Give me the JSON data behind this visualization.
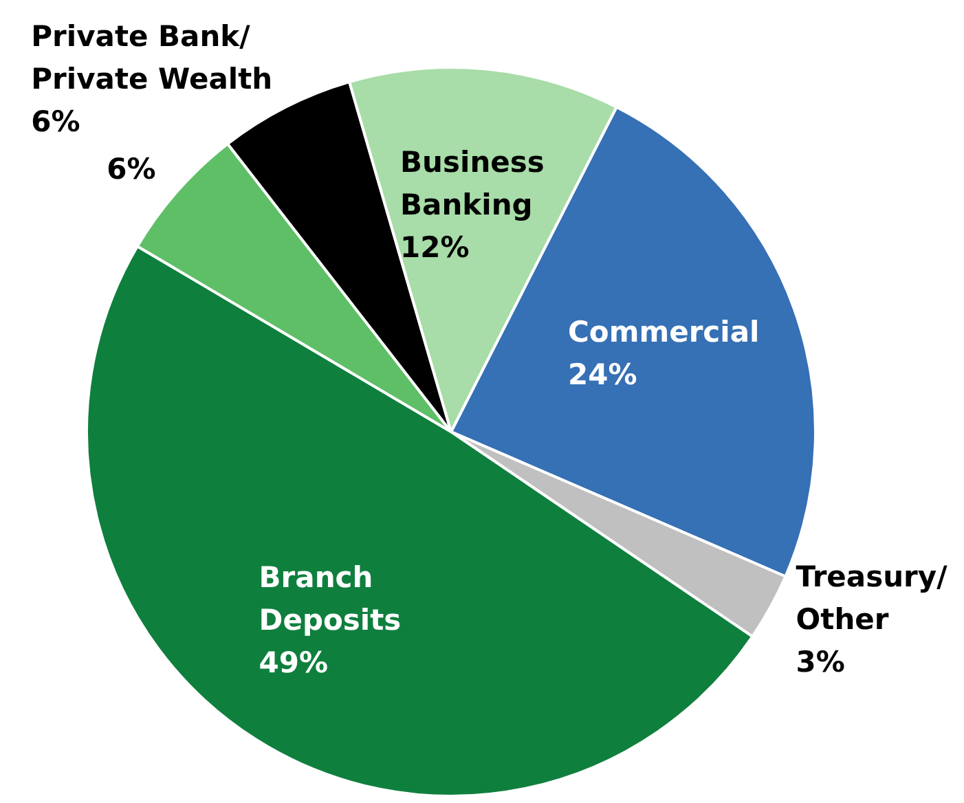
{
  "chart_data": {
    "type": "pie",
    "categories": [
      "Commercial",
      "Treasury/\nOther",
      "Branch\nDeposits",
      null,
      "Private Bank/\nPrivate Wealth",
      "Business\nBanking"
    ],
    "values": [
      24,
      3,
      49,
      6,
      6,
      12
    ],
    "colors": [
      "#3670b5",
      "#c0c0c0",
      "#0f7f3e",
      "#5fbf67",
      "#000000",
      "#a8dca8"
    ],
    "value_labels": [
      "24%",
      "3%",
      "49%",
      "6%",
      "6%",
      "12%"
    ],
    "legend": false
  }
}
